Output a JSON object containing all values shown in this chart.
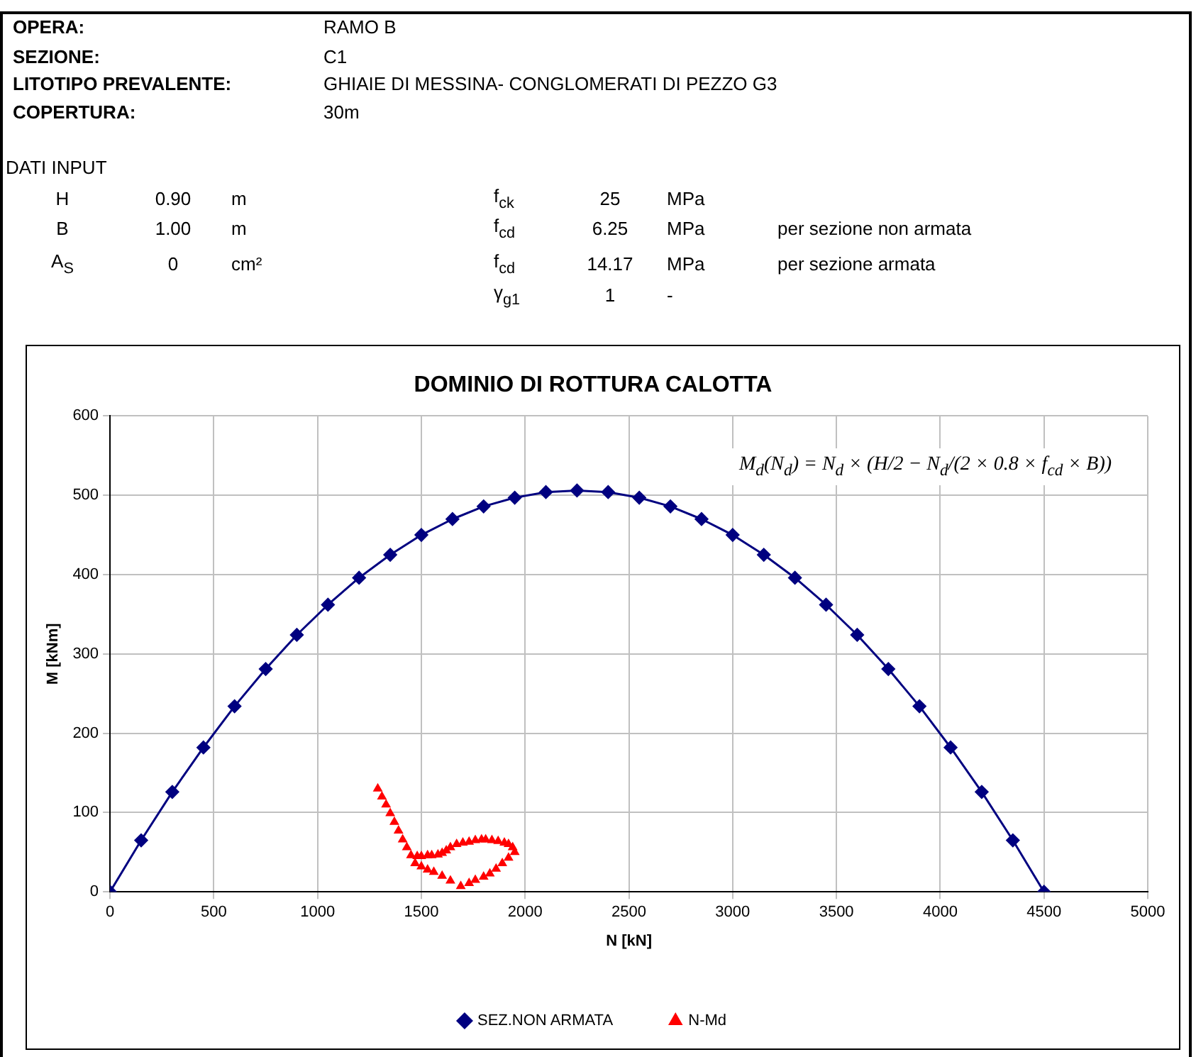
{
  "chart_data": {
    "type": "line",
    "title": "DOMINIO DI ROTTURA CALOTTA",
    "xlabel": "N [kN]",
    "ylabel": "M [kNm]",
    "xlim": [
      0,
      5000
    ],
    "xticks": [
      0,
      500,
      1000,
      1500,
      2000,
      2500,
      3000,
      3500,
      4000,
      4500,
      5000
    ],
    "ylim": [
      0,
      600
    ],
    "yticks": [
      0,
      100,
      200,
      300,
      400,
      500,
      600
    ],
    "grid": true,
    "legend": "bottom",
    "series": [
      {
        "name": "SEZ.NON ARMATA",
        "type": "line",
        "color": "#000080",
        "marker": "diamond",
        "line_style": "solid",
        "x": [
          0,
          150,
          300,
          450,
          600,
          750,
          900,
          1050,
          1200,
          1350,
          1500,
          1650,
          1800,
          1950,
          2100,
          2250,
          2400,
          2550,
          2700,
          2850,
          3000,
          3150,
          3300,
          3450,
          3600,
          3750,
          3900,
          4050,
          4200,
          4350,
          4500
        ],
        "values": [
          0,
          65,
          126,
          182,
          234,
          281,
          324,
          362,
          396,
          425,
          450,
          470,
          486,
          497,
          504,
          506,
          504,
          497,
          486,
          470,
          450,
          425,
          396,
          362,
          324,
          281,
          234,
          182,
          126,
          65,
          0
        ]
      },
      {
        "name": "N-Md",
        "type": "scatter",
        "color": "#ff0000",
        "marker": "triangle",
        "x": [
          1290,
          1310,
          1330,
          1350,
          1370,
          1390,
          1410,
          1430,
          1450,
          1470,
          1500,
          1530,
          1560,
          1600,
          1640,
          1690,
          1730,
          1760,
          1800,
          1830,
          1860,
          1890,
          1920,
          1950,
          1940,
          1920,
          1900,
          1870,
          1840,
          1810,
          1790,
          1760,
          1730,
          1700,
          1670,
          1640,
          1620,
          1600,
          1580,
          1550,
          1530,
          1500,
          1480
        ],
        "values": [
          130,
          120,
          110,
          99,
          88,
          77,
          66,
          56,
          46,
          36,
          32,
          28,
          25,
          20,
          14,
          7,
          11,
          15,
          19,
          23,
          29,
          36,
          43,
          50,
          56,
          60,
          62,
          64,
          65,
          66,
          66,
          65,
          63,
          62,
          60,
          56,
          52,
          49,
          47,
          46,
          46,
          45,
          45
        ]
      }
    ],
    "annotations": [
      "OPERA:",
      "RAMO B",
      "SEZIONE:",
      "C1",
      "LITOTIPO PREVALENTE:",
      "GHIAIE DI MESSINA- CONGLOMERATI DI PEZZO G3",
      "COPERTURA:",
      "30m",
      "DATI INPUT",
      "H",
      "0.90",
      "m",
      "f$_{ck}$",
      "25",
      "MPa",
      "B",
      "1.00",
      "m",
      "f$_{cd}$",
      "6.25",
      "MPa",
      "per sezione non armata",
      "A$_{S}$",
      "0",
      "cm²",
      "f$_{cd}$",
      "14.17",
      "MPa",
      "per sezione armata",
      "γ$_{g1}$",
      "1",
      "-",
      "M$_{d}$(N$_{d}$) = N$_{d}$ × (H/2 − N$_{d}$/(2 × 0.8 × f$_{cd}$ × B))"
    ]
  }
}
